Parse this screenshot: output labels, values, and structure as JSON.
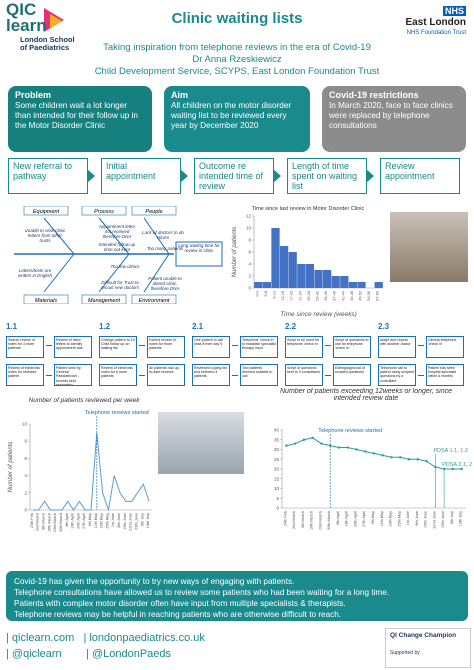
{
  "header": {
    "logo_top": "QIC",
    "logo_bottom": "learn",
    "school": "London School of Paediatrics",
    "title": "Clinic waiting lists",
    "subtitle": "Taking inspiration from telephone reviews in the era of Covid-19",
    "author": "Dr Anna Rzeskiewicz",
    "affiliation": "Child Development Service, SCYPS, East London Foundation Trust",
    "trust_name": "East London",
    "trust_sub": "NHS Foundation Trust",
    "nhs": "NHS"
  },
  "boxes": [
    {
      "title": "Problem",
      "text": "Some children wait a lot longer than intended  for their follow up in the Motor Disorder Clinic"
    },
    {
      "title": "Aim",
      "text": "All children on the motor disorder waiting list to be reviewed every year by December 2020"
    },
    {
      "title": "Covid-19 restrictions",
      "text": "In March 2020,  face to face clinics were replaced by telephone consultations"
    }
  ],
  "process": [
    "New referral to pathway",
    "Initial appointment",
    "Outcome re intended time of review",
    "Length of time spent on waiting list",
    "Review appointment"
  ],
  "fishbone": {
    "categories": [
      "Equipment",
      "Process",
      "People",
      "Materials",
      "Management",
      "Environment"
    ],
    "causes": [
      "Unable to view clinic letters from other trusts",
      "Appointment letter not received therefore DNA",
      "Intended follow up time not kept",
      "Lack of doctors to do clinics",
      "Too many patients",
      "Letters/texts are written in English",
      "Too few clinics",
      "Difficult for Trust to recruit new doctors",
      "Patient unable to attend clinic, therefore DNA"
    ],
    "effect": "Long waiting time for review in clinic"
  },
  "pdsa": [
    {
      "label": "1.1",
      "steps": [
        "Search review of notes for 3 more patients",
        "Review of clinic letters to identify appointment due",
        "Patient seen by General Paediatrician - records kept separately",
        "Review of electronic notes for selected patient"
      ]
    },
    {
      "label": "1.2",
      "steps": [
        "Change pattern to 10 Child follow up on waiting list",
        "Extend review of notes for more patients",
        "All patients had up-to-date reviews",
        "Review of electronic notes for 6 more patients"
      ]
    },
    {
      "label": "2.1",
      "steps": [
        "One patient to call (was it their day?)",
        "Telephone 'check in' to establish specialist therapy input",
        "Two patients deemed suitable to call",
        "Reviewed coping list and selected 4 patients"
      ]
    },
    {
      "label": "2.2",
      "steps": [
        "Script to be used for telephone 'check in'",
        "Script of questions to use for telephone 'check in'",
        "Editing/approval of scripted questions",
        "Script of questions sent to 3 consultants"
      ]
    },
    {
      "label": "2.3",
      "steps": [
        "Adapt and repeat with another doctor",
        "Clinical telephone 'check in'",
        "Patient has seen hospital specialist within 6 months",
        "Telephone call to patient using scripted questions by a consultant"
      ]
    }
  ],
  "chart_data": [
    {
      "type": "bar",
      "title": "Time since last review in Motor Disorder Clinic",
      "y_label": "Number of patients",
      "x_label": "Time since review (weeks)",
      "categories": [
        "0-4",
        "5-8",
        "9-12",
        "13-16",
        "17-20",
        "21-24",
        "25-28",
        "29-32",
        "33-36",
        "37-40",
        "41-44",
        "45-48",
        "49-52",
        "53-56",
        "57-60"
      ],
      "values": [
        1,
        1,
        10,
        7,
        6,
        4,
        4,
        3,
        3,
        2,
        2,
        1,
        1,
        0,
        1
      ],
      "color": "#4472c4",
      "ylim": [
        0,
        12
      ],
      "yticks": [
        0,
        2,
        4,
        6,
        8,
        10,
        12
      ]
    },
    {
      "type": "line",
      "title": "Number of patients reviewed per week",
      "y_label": "Number of patients",
      "annotations": [
        "Telephone reviews started"
      ],
      "categories": [
        "24th Feb",
        "2nd March",
        "9th March",
        "16th March",
        "23rd March",
        "30th March",
        "6th April",
        "13th April",
        "20th April",
        "27th April",
        "4th May",
        "11th May",
        "18th May",
        "25th May",
        "1st June",
        "8th June",
        "15th June",
        "22nd June",
        "29th June",
        "6th July",
        "13th July"
      ],
      "values": [
        0,
        0,
        1,
        0,
        0,
        0,
        1,
        0,
        1,
        0,
        0,
        9,
        2,
        0,
        4,
        2,
        1,
        1,
        2,
        3,
        1
      ],
      "color": "#5b9bd5",
      "ylim": [
        0,
        10
      ],
      "yticks": [
        0,
        2,
        4,
        6,
        8,
        10
      ]
    },
    {
      "type": "line",
      "title": "Number of patients exceeding 12weeks or longer, since intended review date",
      "annotations": [
        "Telephone reviews started",
        "PDSA 1.1, 1.2",
        "PDSA 2.1, 2.2, 2.3"
      ],
      "categories": [
        "24th Feb",
        "2nd March",
        "9th March",
        "16th March",
        "23rd March",
        "30th March",
        "6th April",
        "13th April",
        "20th April",
        "27th April",
        "4th May",
        "11th May",
        "18th May",
        "25th May",
        "1st June",
        "8th June",
        "15th June",
        "22nd June",
        "29th June",
        "6th July",
        "13th July"
      ],
      "values": [
        32,
        33,
        35,
        36,
        33,
        32,
        31,
        31,
        30,
        29,
        28,
        27,
        26,
        26,
        25,
        25,
        24,
        21,
        20,
        20,
        20
      ],
      "color": "#2e9c9c",
      "ylim": [
        0,
        40
      ],
      "yticks": [
        0,
        5,
        10,
        15,
        20,
        25,
        30,
        35,
        40
      ]
    }
  ],
  "conclusion": [
    "Covid-19 has given the opportunity to try new ways of engaging with patients.",
    "Telephone consultations have allowed us to  review some patients who had been waiting for a long time.",
    "Patients with complex motor disorder often have input from multiple specialists & therapists.",
    "Telephone reviews may be helpful in reaching patients who are otherwise difficult to reach."
  ],
  "footer": {
    "line1": "| qiclearn.com   | londonpaediatrics.co.uk",
    "line2": "| @qiclearn        | @LondonPaeds",
    "badge": "QI Change Champion",
    "supported": "Supported by"
  }
}
